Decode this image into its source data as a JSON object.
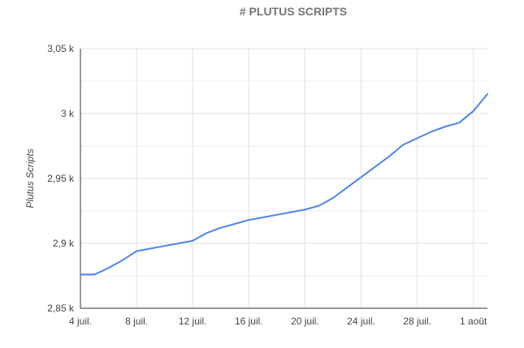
{
  "chart_data": {
    "type": "line",
    "title": "# PLUTUS SCRIPTS",
    "xlabel": "",
    "ylabel": "Plutus Scripts",
    "x_ticks": [
      "4 juil.",
      "8 juil.",
      "12 juil.",
      "16 juil.",
      "20 juil.",
      "24 juil.",
      "28 juil.",
      "1 août"
    ],
    "y_ticks": [
      "2,85 k",
      "2,9 k",
      "2,95 k",
      "3 k",
      "3,05 k"
    ],
    "ylim": [
      2850,
      3050
    ],
    "grid": true,
    "legend": "none",
    "colors": {
      "line": "#4a86e8",
      "grid": "#e0e0e0",
      "axis": "#333333"
    },
    "series": [
      {
        "x": [
          "4 juil.",
          "5 juil.",
          "6 juil.",
          "7 juil.",
          "8 juil.",
          "9 juil.",
          "10 juil.",
          "11 juil.",
          "12 juil.",
          "13 juil.",
          "14 juil.",
          "15 juil.",
          "16 juil.",
          "17 juil.",
          "18 juil.",
          "19 juil.",
          "20 juil.",
          "21 juil.",
          "22 juil.",
          "23 juil.",
          "24 juil.",
          "25 juil.",
          "26 juil.",
          "27 juil.",
          "28 juil.",
          "29 juil.",
          "30 juil.",
          "31 juil.",
          "1 août",
          "2 août"
        ],
        "values": [
          2876,
          2876,
          2881,
          2887,
          2894,
          2896,
          2898,
          2900,
          2902,
          2908,
          2912,
          2915,
          2918,
          2920,
          2922,
          2924,
          2926,
          2929,
          2935,
          2943,
          2951,
          2959,
          2967,
          2976,
          2981,
          2986,
          2990,
          2993,
          3002,
          3015
        ]
      }
    ]
  }
}
